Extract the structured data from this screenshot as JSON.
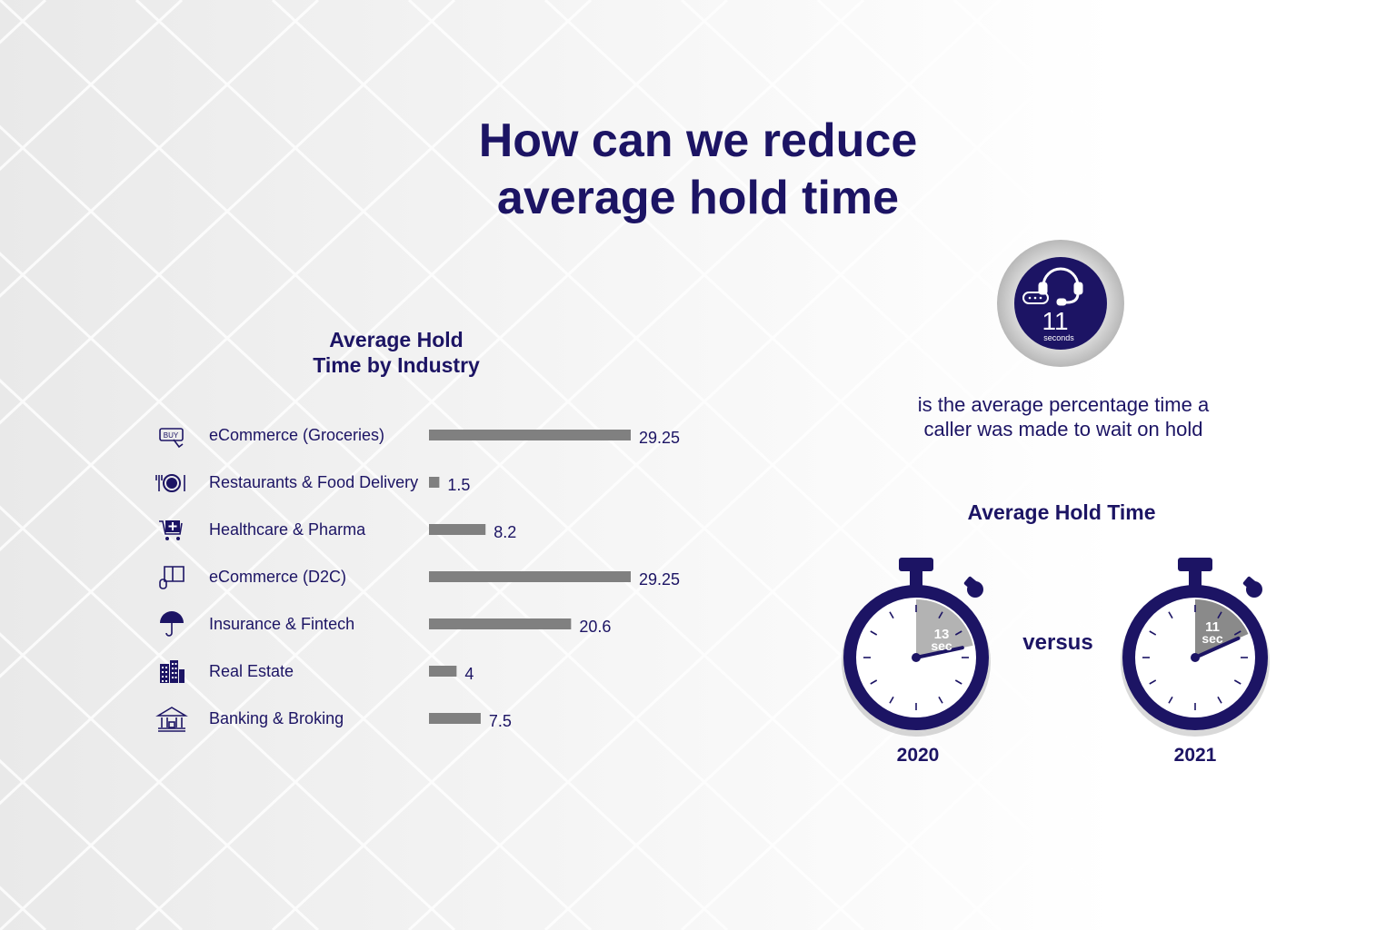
{
  "title": [
    "How can we reduce",
    "average hold time"
  ],
  "colors": {
    "navy": "#1c1464",
    "bar": "#808080",
    "swirl_gray": "#b0b0b0"
  },
  "chart_data": {
    "type": "bar",
    "orientation": "horizontal",
    "title": [
      "Average Hold",
      "Time by Industry"
    ],
    "categories": [
      "eCommerce (Groceries)",
      "Restaurants & Food Delivery",
      "Healthcare & Pharma",
      "eCommerce (D2C)",
      "Insurance & Fintech",
      "Real Estate",
      "Banking & Broking"
    ],
    "icons": [
      "buy-icon",
      "plate-icon",
      "medical-cart-icon",
      "book-mouse-icon",
      "umbrella-icon",
      "buildings-icon",
      "bank-icon"
    ],
    "values": [
      29.25,
      1.5,
      8.2,
      29.25,
      20.6,
      4,
      7.5
    ],
    "value_labels": [
      "29.25",
      "1.5",
      "8.2",
      "29.25",
      "20.6",
      "4",
      "7.5"
    ],
    "xlim": [
      0,
      29.25
    ],
    "bar_color": "#808080",
    "grid": false
  },
  "badge": {
    "number": "11",
    "unit": "seconds",
    "icon": "headset-icon"
  },
  "description": [
    "is the average percentage time a",
    "caller was made to wait on hold"
  ],
  "hold_time": {
    "title": "Average Hold Time",
    "versus": "versus",
    "years": [
      {
        "year": "2020",
        "seconds": 13,
        "label_num": "13",
        "label_unit": "sec"
      },
      {
        "year": "2021",
        "seconds": 11,
        "label_num": "11",
        "label_unit": "sec"
      }
    ]
  }
}
